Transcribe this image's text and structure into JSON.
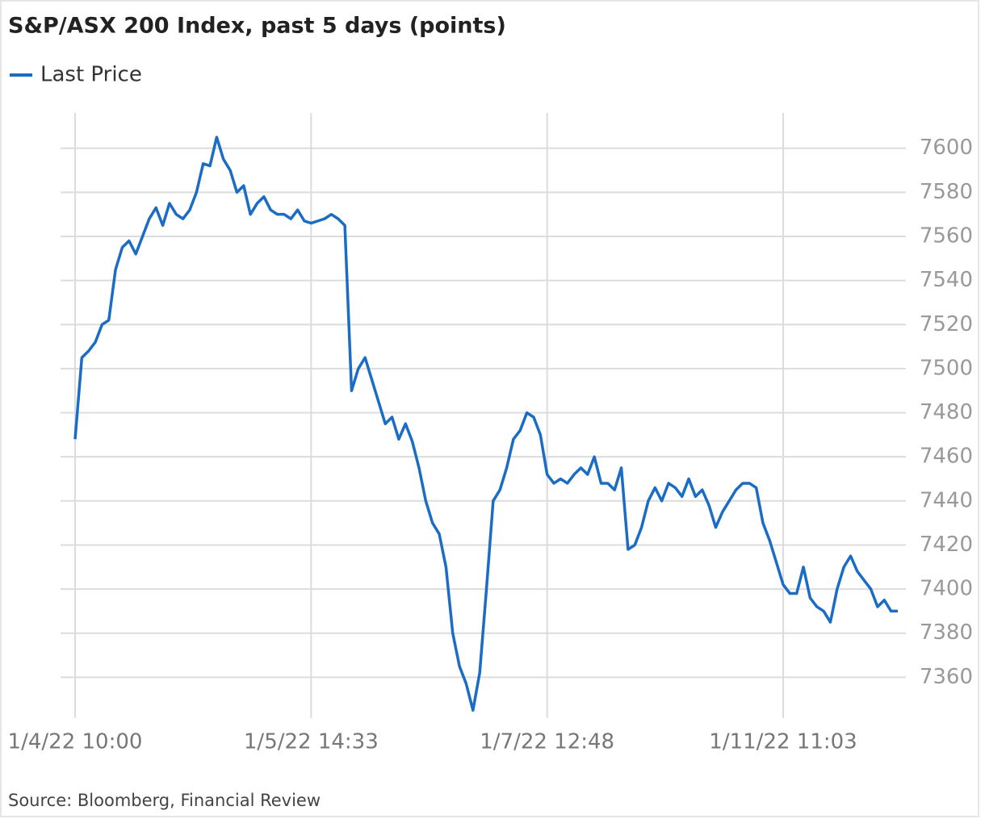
{
  "chart_data": {
    "type": "line",
    "title": "S&P/ASX 200 Index, past 5 days (points)",
    "source": "Source: Bloomberg, Financial Review",
    "categories": [
      "1/4/22 10:00",
      null,
      null,
      null,
      null,
      null,
      null,
      null,
      null,
      null,
      null,
      null,
      null,
      null,
      null,
      null,
      null,
      null,
      null,
      null,
      null,
      null,
      null,
      null,
      null,
      null,
      null,
      null,
      null,
      null,
      null,
      null,
      null,
      null,
      null,
      "1/5/22 14:33",
      null,
      null,
      null,
      null,
      null,
      null,
      null,
      null,
      null,
      null,
      null,
      null,
      null,
      null,
      null,
      null,
      null,
      null,
      null,
      null,
      null,
      null,
      null,
      null,
      null,
      null,
      null,
      null,
      null,
      null,
      null,
      null,
      null,
      null,
      "1/7/22 12:48",
      null,
      null,
      null,
      null,
      null,
      null,
      null,
      null,
      null,
      null,
      null,
      null,
      null,
      null,
      null,
      null,
      null,
      null,
      null,
      null,
      null,
      null,
      null,
      null,
      null,
      null,
      null,
      null,
      null,
      null,
      null,
      null,
      null,
      null,
      "1/11/22 11:03",
      null,
      null,
      null,
      null,
      null,
      null,
      null,
      null,
      null,
      null,
      null,
      null,
      null,
      null,
      null,
      null,
      null
    ],
    "series": [
      {
        "name": "Last Price",
        "color": "#1a6cc4",
        "values": [
          7468,
          7505,
          7508,
          7512,
          7520,
          7522,
          7545,
          7555,
          7558,
          7552,
          7560,
          7568,
          7573,
          7565,
          7575,
          7570,
          7568,
          7572,
          7580,
          7593,
          7592,
          7605,
          7595,
          7590,
          7580,
          7583,
          7570,
          7575,
          7578,
          7572,
          7570,
          7570,
          7568,
          7572,
          7567,
          7566,
          7567,
          7568,
          7570,
          7568,
          7565,
          7490,
          7500,
          7505,
          7495,
          7485,
          7475,
          7478,
          7468,
          7475,
          7467,
          7455,
          7440,
          7430,
          7425,
          7410,
          7380,
          7365,
          7357,
          7345,
          7362,
          7400,
          7440,
          7445,
          7455,
          7468,
          7472,
          7480,
          7478,
          7470,
          7452,
          7448,
          7450,
          7448,
          7452,
          7455,
          7452,
          7460,
          7448,
          7448,
          7445,
          7455,
          7418,
          7420,
          7428,
          7440,
          7446,
          7440,
          7448,
          7446,
          7442,
          7450,
          7442,
          7445,
          7438,
          7428,
          7435,
          7440,
          7445,
          7448,
          7448,
          7446,
          7430,
          7422,
          7412,
          7402,
          7398,
          7398,
          7410,
          7396,
          7392,
          7390,
          7385,
          7400,
          7410,
          7415,
          7408,
          7404,
          7400,
          7392,
          7395,
          7390,
          7390
        ]
      }
    ],
    "ylim": [
      7340,
      7616
    ],
    "yticks": [
      7360,
      7380,
      7400,
      7420,
      7440,
      7460,
      7480,
      7500,
      7520,
      7540,
      7560,
      7580,
      7600
    ],
    "grid": true
  }
}
